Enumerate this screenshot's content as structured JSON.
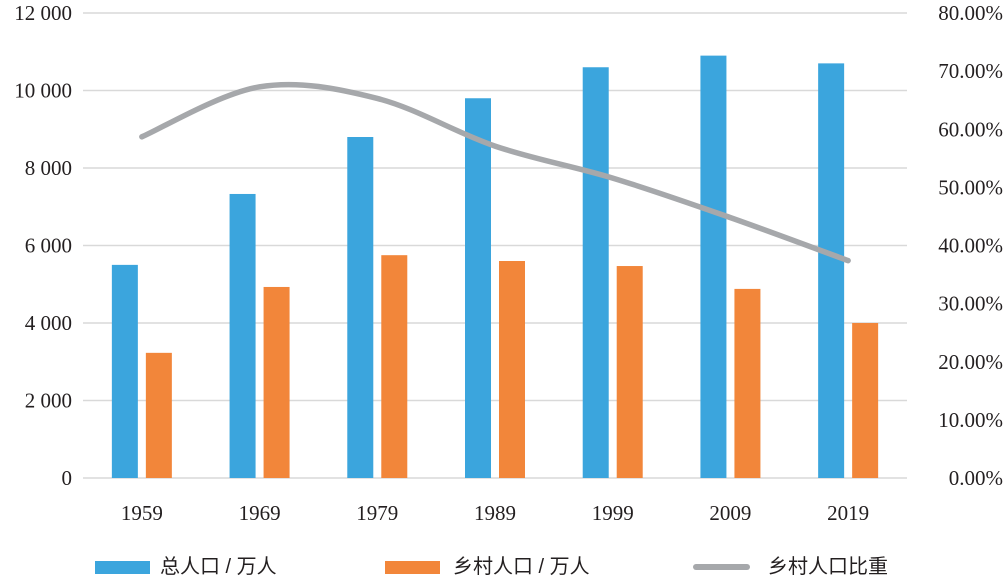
{
  "chart_data": {
    "type": "bar",
    "categories": [
      "1959",
      "1969",
      "1979",
      "1989",
      "1999",
      "2009",
      "2019"
    ],
    "series": [
      {
        "name": "总人口 / 万人",
        "type": "bar",
        "axis": "left",
        "values": [
          5500,
          7330,
          8800,
          9800,
          10600,
          10900,
          10700
        ],
        "color": "#3ba5dd"
      },
      {
        "name": "乡村人口 / 万人",
        "type": "bar",
        "axis": "left",
        "values": [
          3230,
          4930,
          5750,
          5600,
          5470,
          4880,
          4000
        ],
        "color": "#f2863a"
      },
      {
        "name": "乡村人口比重",
        "type": "line",
        "axis": "right",
        "unit": "%",
        "smooth": true,
        "values": [
          58.7,
          67.3,
          65.3,
          57.1,
          51.6,
          44.8,
          37.4
        ],
        "color": "#a6a8ab"
      }
    ],
    "y_left": {
      "min": 0,
      "max": 12000,
      "ticks": [
        0,
        2000,
        4000,
        6000,
        8000,
        10000,
        12000
      ],
      "tick_labels": [
        "0",
        "2 000",
        "4 000",
        "6 000",
        "8 000",
        "10 000",
        "12 000"
      ]
    },
    "y_right": {
      "min": 0,
      "max": 80,
      "unit": "%",
      "ticks": [
        0,
        10,
        20,
        30,
        40,
        50,
        60,
        70,
        80
      ],
      "tick_labels": [
        "0.00%",
        "10.00%",
        "20.00%",
        "30.00%",
        "40.00%",
        "50.00%",
        "60.00%",
        "70.00%",
        "80.00%"
      ]
    },
    "grid": true,
    "grid_color": "#d9d9d9",
    "text_color": "#231f20",
    "legend": "bottom"
  }
}
